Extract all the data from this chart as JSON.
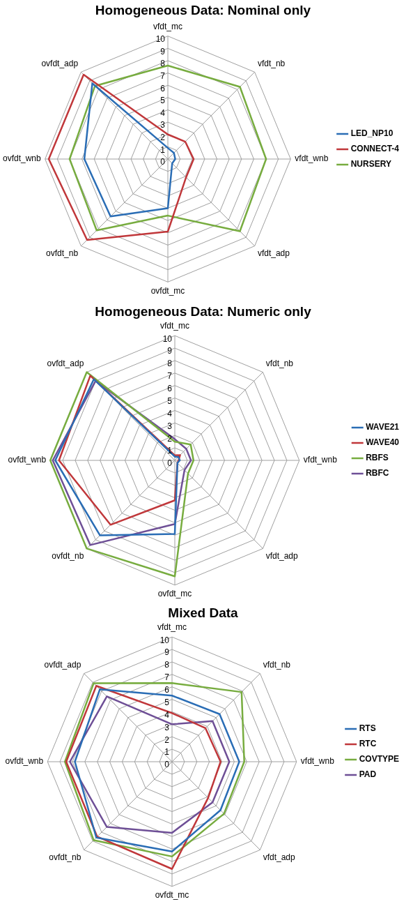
{
  "chart_data": [
    {
      "type": "radar",
      "title": "Homogeneous Data: Nominal only",
      "categories": [
        "vfdt_mc",
        "vfdt_nb",
        "vfdt_wnb",
        "vfdt_adp",
        "ovfdt_mc",
        "ovfdt_nb",
        "ovfdt_wnb",
        "ovfdt_adp"
      ],
      "ylim": [
        0,
        10
      ],
      "yticks": [
        0,
        1,
        2,
        3,
        4,
        5,
        6,
        7,
        8,
        9,
        10
      ],
      "grid": true,
      "legend": "right",
      "marker": "none",
      "series": [
        {
          "name": "LED_NP10",
          "color": "#2a6db5",
          "values": [
            0.9,
            0.7,
            0.6,
            0.5,
            4.0,
            6.6,
            6.8,
            8.7
          ]
        },
        {
          "name": "CONNECT-4",
          "color": "#c0373a",
          "values": [
            2.0,
            2.0,
            2.1,
            2.1,
            5.9,
            9.3,
            9.7,
            9.7
          ]
        },
        {
          "name": "NURSERY",
          "color": "#77ac3f",
          "values": [
            7.6,
            8.3,
            8.0,
            8.3,
            4.6,
            8.2,
            8.0,
            8.4
          ]
        }
      ]
    },
    {
      "type": "radar",
      "title": "Homogeneous Data: Numeric only",
      "categories": [
        "vfdt_mc",
        "vfdt_nb",
        "vfdt_wnb",
        "vfdt_adp",
        "ovfdt_mc",
        "ovfdt_nb",
        "ovfdt_wnb",
        "ovfdt_adp"
      ],
      "ylim": [
        0,
        10
      ],
      "yticks": [
        0,
        1,
        2,
        3,
        4,
        5,
        6,
        7,
        8,
        9,
        10
      ],
      "grid": true,
      "legend": "right",
      "marker": "none",
      "series": [
        {
          "name": "WAVE21",
          "color": "#2a6db5",
          "values": [
            0.3,
            0.4,
            0.4,
            0.3,
            5.9,
            8.5,
            9.6,
            9.2
          ]
        },
        {
          "name": "WAVE40",
          "color": "#c0373a",
          "values": [
            0.4,
            0.6,
            0.3,
            0.3,
            3.2,
            7.3,
            9.3,
            9.6
          ]
        },
        {
          "name": "RBFS",
          "color": "#77ac3f",
          "values": [
            1.5,
            1.8,
            1.5,
            1.5,
            9.3,
            10.0,
            10.0,
            10.0
          ]
        },
        {
          "name": "RBFC",
          "color": "#6e4f96",
          "values": [
            1.7,
            1.3,
            1.3,
            1.1,
            5.1,
            9.6,
            9.8,
            9.0
          ]
        }
      ]
    },
    {
      "type": "radar",
      "title": "Mixed Data",
      "categories": [
        "vfdt_mc",
        "vfdt_nb",
        "vfdt_wnb",
        "vfdt_adp",
        "ovfdt_mc",
        "ovfdt_nb",
        "ovfdt_wnb",
        "ovfdt_adp"
      ],
      "ylim": [
        0,
        10
      ],
      "yticks": [
        0,
        1,
        2,
        3,
        4,
        5,
        6,
        7,
        8,
        9,
        10
      ],
      "grid": true,
      "legend": "right",
      "marker": "none",
      "series": [
        {
          "name": "RTS",
          "color": "#2a6db5",
          "values": [
            5.3,
            5.4,
            5.4,
            5.5,
            7.2,
            8.6,
            7.8,
            8.2
          ]
        },
        {
          "name": "RTC",
          "color": "#c0373a",
          "values": [
            3.9,
            3.8,
            3.9,
            4.1,
            8.6,
            8.5,
            8.5,
            8.6
          ]
        },
        {
          "name": "COVTYPE",
          "color": "#77ac3f",
          "values": [
            6.3,
            7.9,
            5.8,
            5.9,
            7.6,
            8.9,
            8.6,
            8.9
          ]
        },
        {
          "name": "PAD",
          "color": "#6e4f96",
          "values": [
            3.0,
            4.6,
            4.6,
            4.6,
            5.7,
            7.4,
            8.2,
            7.4
          ]
        }
      ]
    }
  ]
}
